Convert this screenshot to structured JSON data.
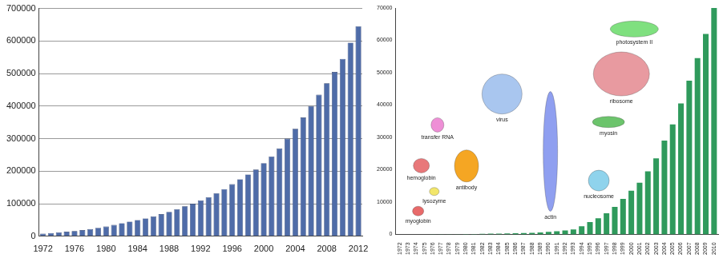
{
  "chart_data": [
    {
      "type": "bar",
      "categories": [
        "1972",
        null,
        null,
        null,
        "1976",
        null,
        null,
        null,
        "1980",
        null,
        null,
        null,
        "1984",
        null,
        null,
        null,
        "1988",
        null,
        null,
        null,
        "1992",
        null,
        null,
        null,
        "1996",
        null,
        null,
        null,
        "2000",
        null,
        null,
        null,
        "2004",
        null,
        null,
        null,
        "2008",
        null,
        null,
        null,
        "2012"
      ],
      "values": [
        8000,
        10000,
        12000,
        14000,
        16000,
        19000,
        22000,
        26000,
        30000,
        35000,
        40000,
        45000,
        50000,
        55000,
        61000,
        68000,
        75000,
        83000,
        92000,
        100000,
        110000,
        120000,
        132000,
        145000,
        160000,
        175000,
        190000,
        205000,
        225000,
        245000,
        270000,
        300000,
        330000,
        365000,
        400000,
        435000,
        470000,
        505000,
        545000,
        595000,
        645000
      ],
      "color": "#4f6ca8",
      "ylim": [
        0,
        700000
      ],
      "yticks": [
        0,
        100000,
        200000,
        300000,
        400000,
        500000,
        600000,
        700000
      ],
      "grid": true
    },
    {
      "type": "bar",
      "categories": [
        "1972",
        "1973",
        "1974",
        "1975",
        "1976",
        "1977",
        "1978",
        "1979",
        "1980",
        "1981",
        "1982",
        "1983",
        "1984",
        "1985",
        "1986",
        "1987",
        "1988",
        "1989",
        "1990",
        "1991",
        "1992",
        "1993",
        "1994",
        "1995",
        "1996",
        "1997",
        "1998",
        "1999",
        "2000",
        "2001",
        "2002",
        "2003",
        "2004",
        "2005",
        "2006",
        "2007",
        "2008",
        "2009",
        "2010"
      ],
      "values": [
        7,
        9,
        12,
        13,
        19,
        38,
        60,
        70,
        90,
        120,
        150,
        200,
        250,
        300,
        350,
        400,
        500,
        600,
        800,
        1000,
        1200,
        1500,
        2500,
        3800,
        5000,
        6500,
        8500,
        11000,
        13500,
        16000,
        19500,
        23500,
        29000,
        34000,
        40500,
        47500,
        54500,
        62000,
        70000
      ],
      "color": "#2f9a5c",
      "ylim": [
        0,
        70000
      ],
      "yticks": [
        0,
        10000,
        20000,
        30000,
        40000,
        50000,
        60000,
        70000
      ],
      "grid": false,
      "annotations": [
        "myoglobin",
        "lysozyme",
        "hemoglobin",
        "transfer RNA",
        "antibody",
        "virus",
        "actin",
        "nucleosome",
        "myosin",
        "ribosome",
        "photosystem II"
      ]
    }
  ]
}
